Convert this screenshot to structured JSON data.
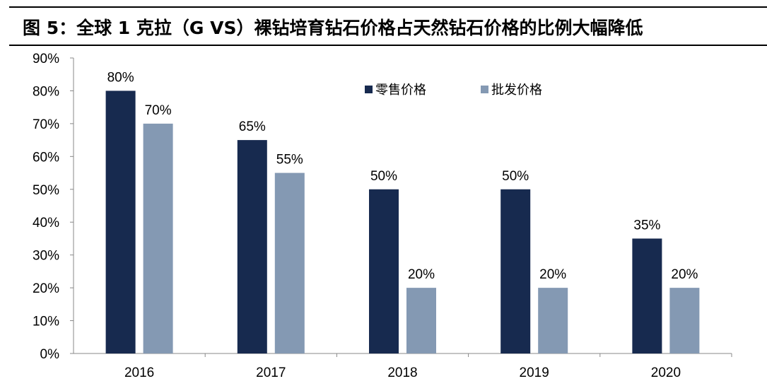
{
  "title": "图 5：全球 1 克拉（G VS）裸钻培育钻石价格占天然钻石价格的比例大幅降低",
  "chart_data": {
    "type": "bar",
    "categories": [
      "2016",
      "2017",
      "2018",
      "2019",
      "2020"
    ],
    "series": [
      {
        "name": "零售价格",
        "values": [
          80,
          65,
          50,
          50,
          35
        ],
        "color": "#172a4f"
      },
      {
        "name": "批发价格",
        "values": [
          70,
          55,
          20,
          20,
          20
        ],
        "color": "#8499b3"
      }
    ],
    "data_labels": [
      [
        "80%",
        "65%",
        "50%",
        "50%",
        "35%"
      ],
      [
        "70%",
        "55%",
        "20%",
        "20%",
        "20%"
      ]
    ],
    "y_ticks": [
      "0%",
      "10%",
      "20%",
      "30%",
      "40%",
      "50%",
      "60%",
      "70%",
      "80%",
      "90%"
    ],
    "ylim": [
      0,
      90
    ],
    "grid": false,
    "legend_position": "top-right"
  }
}
